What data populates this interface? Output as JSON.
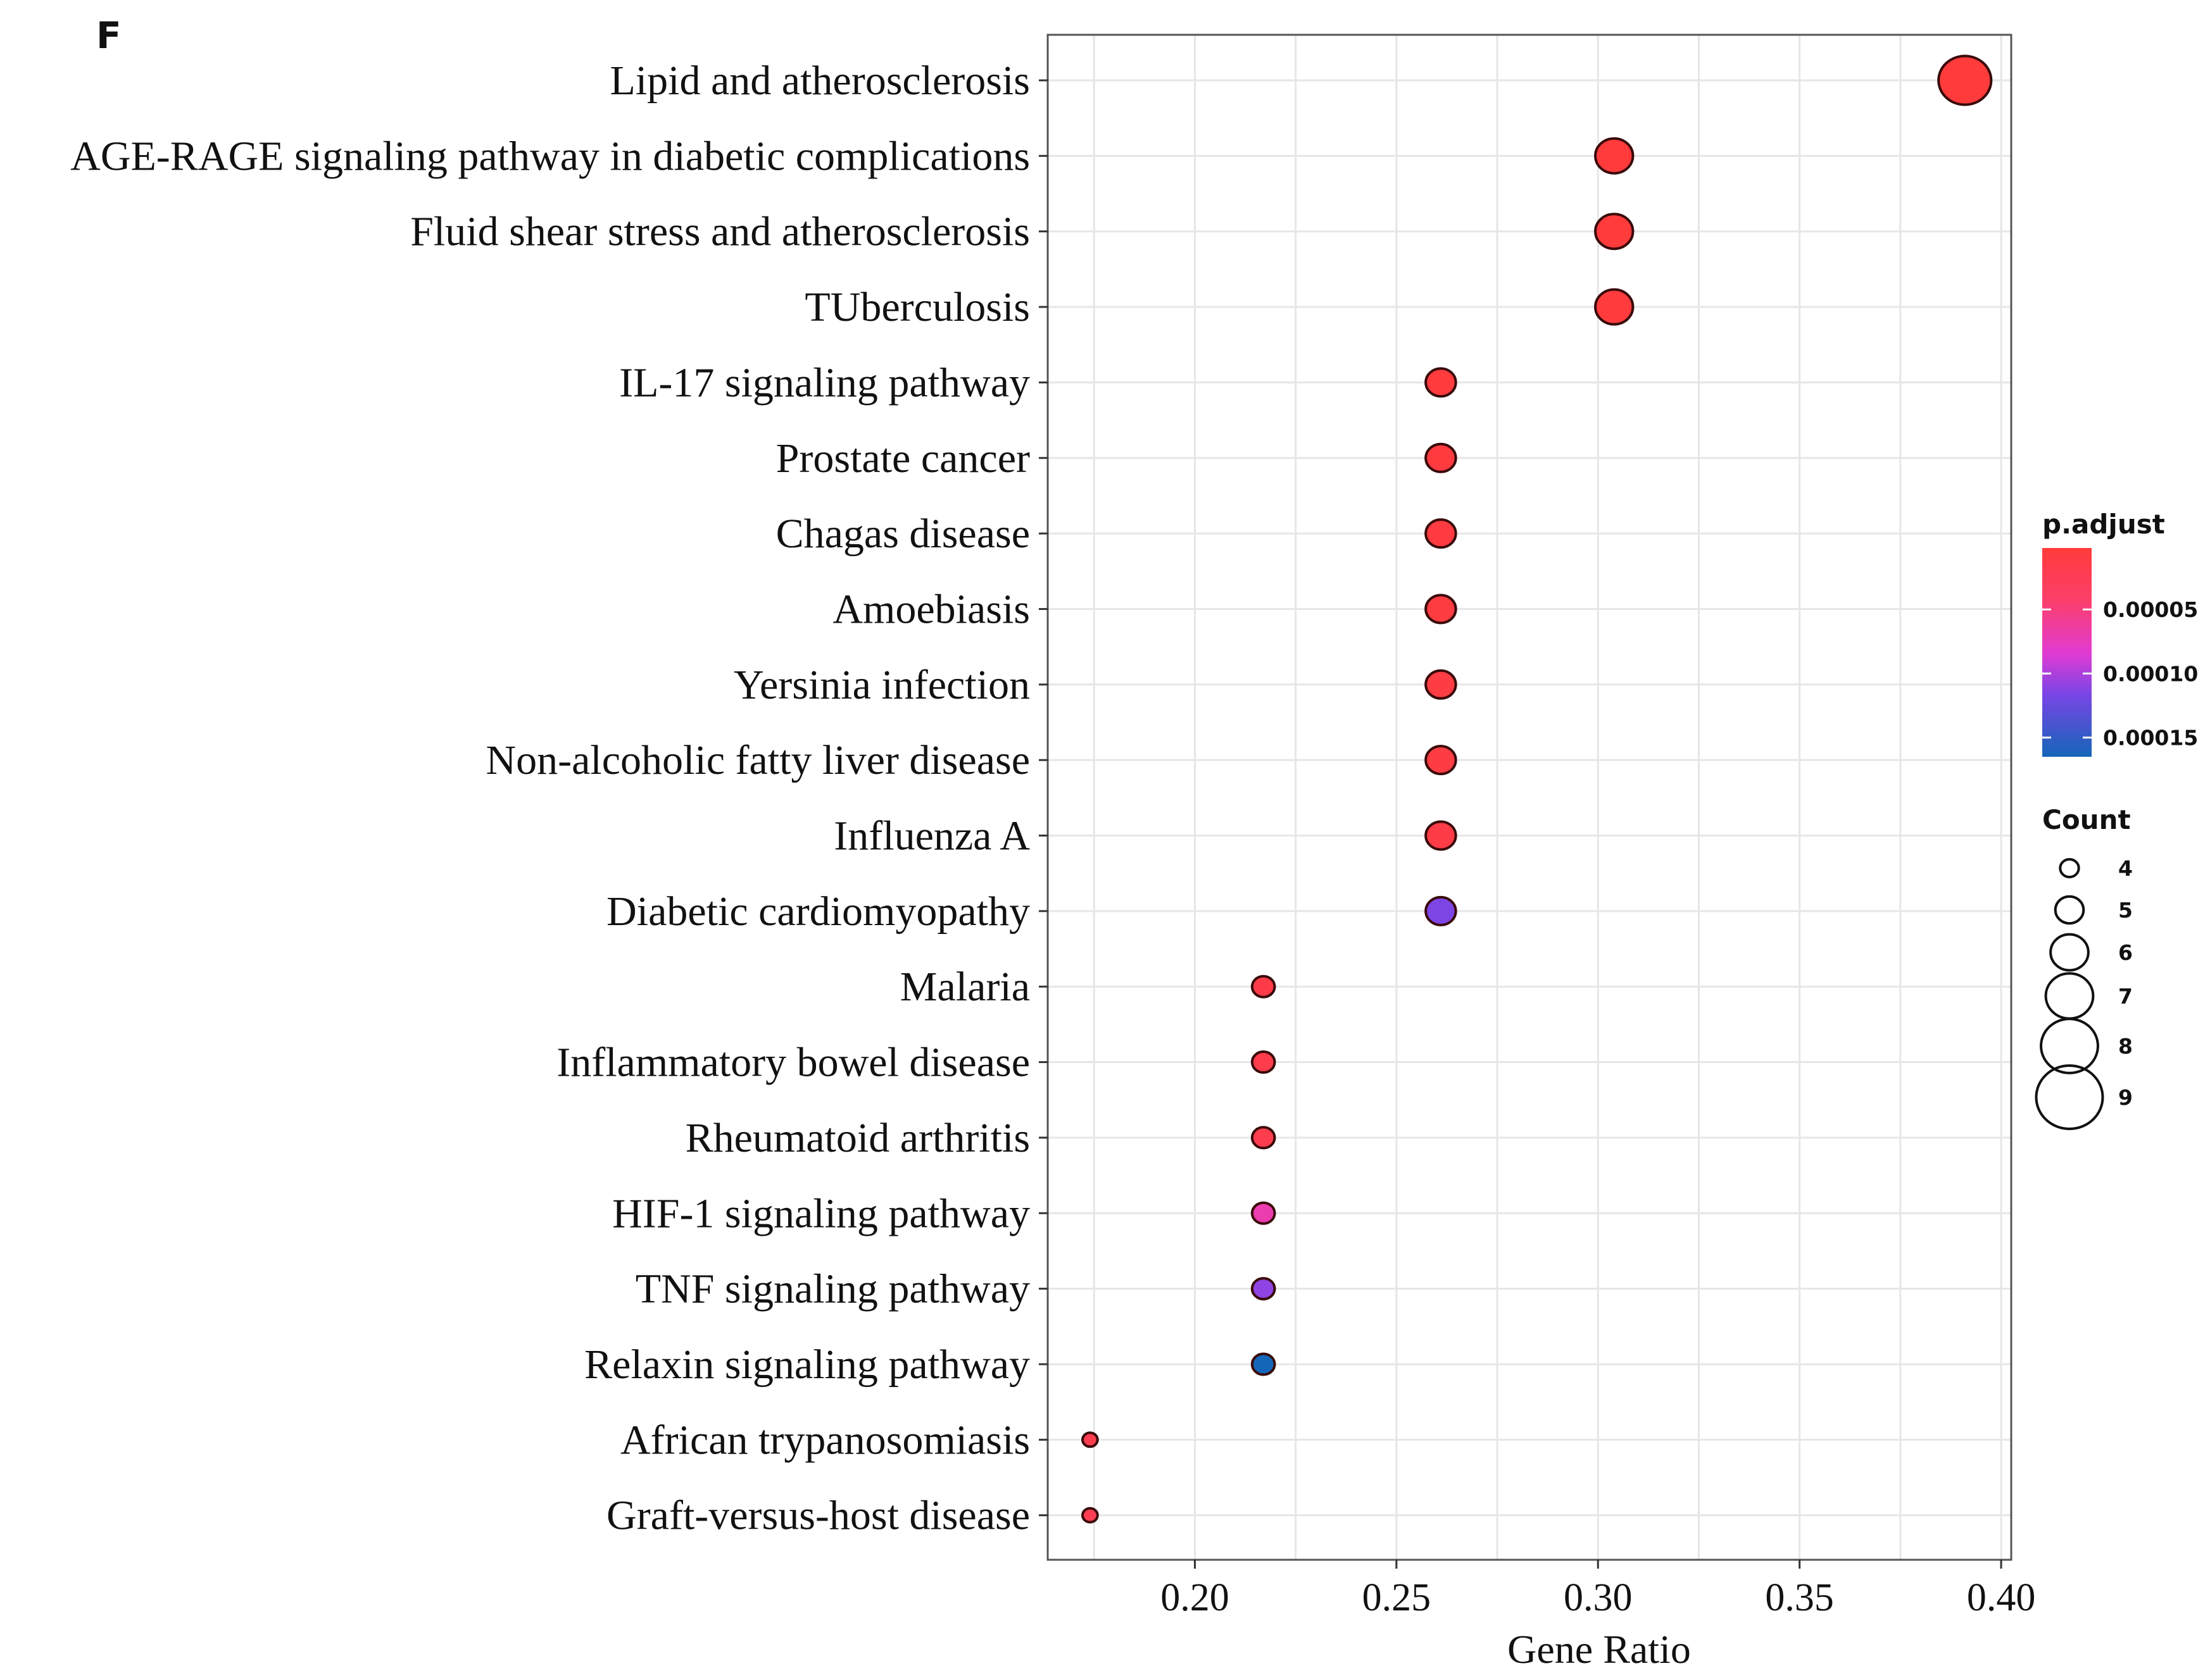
{
  "panel_label": "F",
  "chart_data": {
    "type": "scatter",
    "xlabel": "Gene Ratio",
    "xlim": [
      0.1635,
      0.4025
    ],
    "x_ticks": [
      0.2,
      0.25,
      0.3,
      0.35,
      0.4
    ],
    "x_tick_labels": [
      "0.20",
      "0.25",
      "0.30",
      "0.35",
      "0.40"
    ],
    "grid": true,
    "categories": [
      "Lipid and atherosclerosis",
      "AGE-RAGE signaling pathway in diabetic complications",
      "Fluid shear stress and atherosclerosis",
      "TUberculosis",
      "IL-17 signaling pathway",
      "Prostate cancer",
      "Chagas disease",
      "Amoebiasis",
      "Yersinia infection",
      "Non-alcoholic fatty liver disease",
      "Influenza A",
      "Diabetic cardiomyopathy",
      "Malaria",
      "Inflammatory bowel disease",
      "Rheumatoid arthritis",
      "HIF-1 signaling pathway",
      "TNF signaling pathway",
      "Relaxin signaling pathway",
      "African trypanosomiasis",
      "Graft-versus-host disease"
    ],
    "gene_ratio": [
      0.391,
      0.304,
      0.304,
      0.304,
      0.261,
      0.261,
      0.261,
      0.261,
      0.261,
      0.261,
      0.261,
      0.261,
      0.217,
      0.217,
      0.217,
      0.217,
      0.217,
      0.217,
      0.174,
      0.174
    ],
    "count": [
      9,
      7,
      7,
      7,
      6,
      6,
      6,
      6,
      6,
      6,
      6,
      6,
      5,
      5,
      5,
      5,
      5,
      5,
      4,
      4
    ],
    "p_adjust": [
      2e-06,
      3e-06,
      3e-06,
      4e-06,
      5e-06,
      6e-06,
      7e-06,
      8e-06,
      9e-06,
      1e-05,
      1.2e-05,
      0.000115,
      1.4e-05,
      1.6e-05,
      1.8e-05,
      7e-05,
      0.00011,
      0.000165,
      2e-05,
      2.2e-05
    ],
    "color_legend": {
      "title": "p.adjust",
      "range": [
        2e-06,
        0.000165
      ],
      "ticks": [
        5e-05,
        0.0001,
        0.00015
      ],
      "tick_labels": [
        "0.00005",
        "0.00010",
        "0.00015"
      ],
      "colors": {
        "low": "#ff3b3b",
        "mid": "#e33bd2",
        "mid2": "#7a45e6",
        "high": "#1466b8"
      }
    },
    "size_legend": {
      "title": "Count",
      "values": [
        4,
        5,
        6,
        7,
        8,
        9
      ],
      "labels": [
        "4",
        "5",
        "6",
        "7",
        "8",
        "9"
      ]
    },
    "legend_position": "right"
  }
}
